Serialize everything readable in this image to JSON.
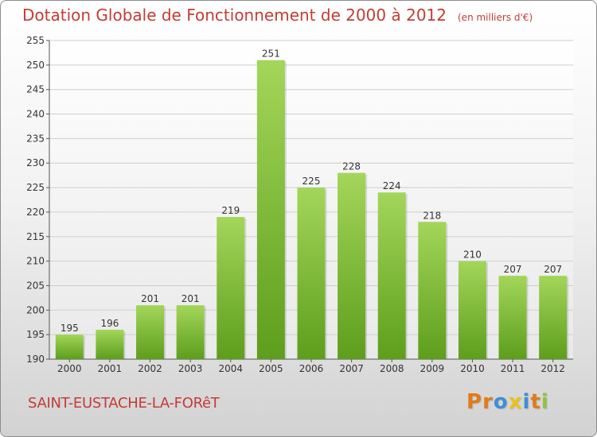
{
  "title": "Dotation Globale de Fonctionnement de 2000 à 2012",
  "unit_note": "(en milliers d'€)",
  "city": "SAINT-EUSTACHE-LA-FORêT",
  "brand": {
    "letters": [
      "P",
      "r",
      "o",
      "x",
      "i",
      "t",
      "i"
    ],
    "colors": [
      "#e07b1a",
      "#e07b1a",
      "#3d8fd6",
      "#e8c21a",
      "#3d8fd6",
      "#e07b1a",
      "#8dc43f"
    ]
  },
  "chart_data": {
    "type": "bar",
    "categories": [
      "2000",
      "2001",
      "2002",
      "2003",
      "2004",
      "2005",
      "2006",
      "2007",
      "2008",
      "2009",
      "2010",
      "2011",
      "2012"
    ],
    "values": [
      195,
      196,
      201,
      201,
      219,
      251,
      225,
      228,
      224,
      218,
      210,
      207,
      207
    ],
    "ylim": [
      190,
      255
    ],
    "yticks": [
      190,
      195,
      200,
      205,
      210,
      215,
      220,
      225,
      230,
      235,
      240,
      245,
      250,
      255
    ],
    "grid": true,
    "bar_color_top": "#a3d65a",
    "bar_color_bottom": "#5d9e1c"
  }
}
